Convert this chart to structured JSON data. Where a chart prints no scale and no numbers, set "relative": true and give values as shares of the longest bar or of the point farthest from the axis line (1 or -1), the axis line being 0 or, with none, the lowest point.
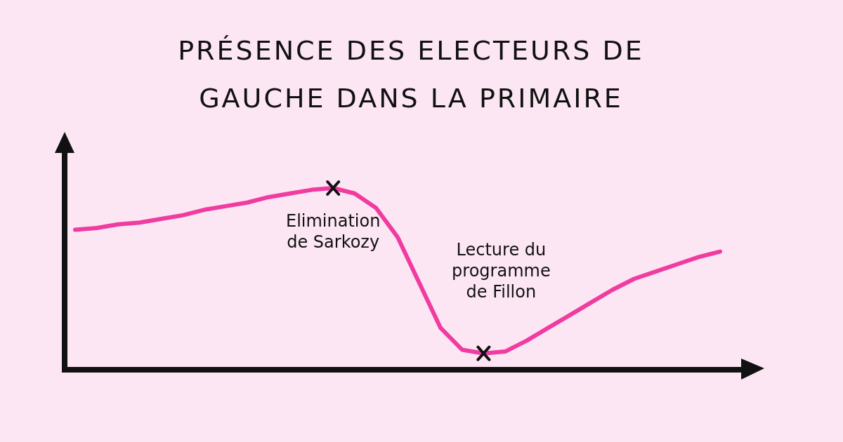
{
  "chart_data": {
    "type": "line",
    "title": "PRÉSENCE DES ELECTEURS DE GAUCHE DANS LA PRIMAIRE",
    "relative": true,
    "color": "#f03ca0",
    "categories": [
      null,
      null,
      null,
      null,
      null,
      null,
      null,
      null,
      null,
      null,
      null,
      null,
      null,
      null,
      null,
      null,
      null,
      null,
      null,
      null,
      null,
      null,
      null,
      null,
      null,
      null,
      null,
      null,
      null,
      null,
      null
    ],
    "values": [
      0.77,
      0.78,
      0.8,
      0.81,
      0.83,
      0.85,
      0.88,
      0.9,
      0.92,
      0.95,
      0.97,
      0.99,
      1,
      0.97,
      0.89,
      0.73,
      0.48,
      0.23,
      0.11,
      0.09,
      0.1,
      0.16,
      0.23,
      0.3,
      0.37,
      0.44,
      0.5,
      0.54,
      0.58,
      0.62,
      0.65
    ],
    "annotations": [
      "Elimination de Sarkozy",
      "Lecture du programme de Fillon"
    ]
  }
}
